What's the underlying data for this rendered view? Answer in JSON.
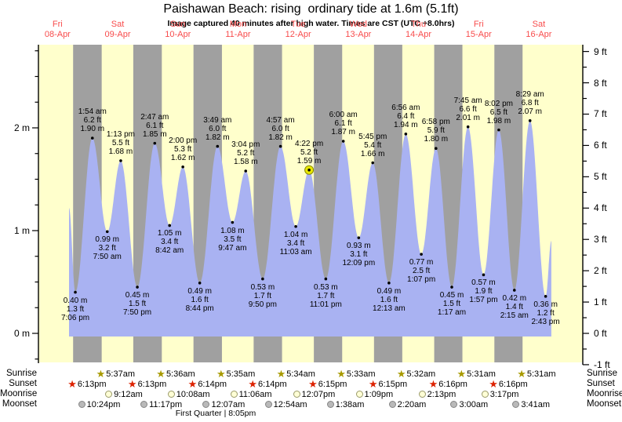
{
  "title": "Paishawan Beach: rising  ordinary tide at 1.6m (5.1ft)",
  "subtitle": "Image captured 40 minutes after high water. Times are CST (UTC +8.0hrs)",
  "row_labels": {
    "sunrise": "Sunrise",
    "sunset": "Sunset",
    "moonrise": "Moonrise",
    "moonset": "Moonset"
  },
  "moon_phase": "First Quarter | 8:05pm",
  "colors": {
    "day_band": "#ffffcc",
    "night_band": "#a0a0a0",
    "tide_fill": "#a9b2f2",
    "date_red": "#f84c4c",
    "sunrise_star": "#a89a00",
    "sunset_star": "#dd2200",
    "moonrise_circle": "#ffffd6",
    "moonset_circle": "#b9b9b9",
    "current_marker": "#ececec00",
    "current_marker_fill": "#e8e800"
  },
  "chart_data": {
    "type": "area",
    "x_axis": "time (9 days, Fri 08-Apr to Sat 16-Apr)",
    "y_axis_left_unit": "m",
    "y_axis_right_unit": "ft",
    "y_ticks_m": [
      0,
      1,
      2
    ],
    "y_ticks_ft": [
      -1,
      0,
      1,
      2,
      3,
      4,
      5,
      6,
      7,
      8,
      9
    ],
    "days": [
      {
        "name": "Fri",
        "date": "08-Apr"
      },
      {
        "name": "Sat",
        "date": "09-Apr"
      },
      {
        "name": "Sun",
        "date": "10-Apr"
      },
      {
        "name": "Mon",
        "date": "11-Apr"
      },
      {
        "name": "Tue",
        "date": "12-Apr"
      },
      {
        "name": "Wed",
        "date": "13-Apr"
      },
      {
        "name": "Thu",
        "date": "14-Apr"
      },
      {
        "name": "Fri",
        "date": "15-Apr"
      },
      {
        "name": "Sat",
        "date": "16-Apr"
      }
    ],
    "tides": [
      {
        "type": "low",
        "day": 0,
        "time": "7:06 pm",
        "m": "0.40",
        "ft": "1.3"
      },
      {
        "type": "high",
        "day": 1,
        "time": "1:54 am",
        "m": "1.90",
        "ft": "6.2"
      },
      {
        "type": "low",
        "day": 1,
        "time": "7:50 am",
        "m": "0.99",
        "ft": "3.2"
      },
      {
        "type": "high",
        "day": 1,
        "time": "1:13 pm",
        "m": "1.68",
        "ft": "5.5"
      },
      {
        "type": "low",
        "day": 1,
        "time": "7:50 pm",
        "m": "0.45",
        "ft": "1.5"
      },
      {
        "type": "high",
        "day": 2,
        "time": "2:47 am",
        "m": "1.85",
        "ft": "6.1"
      },
      {
        "type": "low",
        "day": 2,
        "time": "8:42 am",
        "m": "1.05",
        "ft": "3.4"
      },
      {
        "type": "high",
        "day": 2,
        "time": "2:00 pm",
        "m": "1.62",
        "ft": "5.3"
      },
      {
        "type": "low",
        "day": 2,
        "time": "8:44 pm",
        "m": "0.49",
        "ft": "1.6"
      },
      {
        "type": "high",
        "day": 3,
        "time": "3:49 am",
        "m": "1.82",
        "ft": "6.0"
      },
      {
        "type": "low",
        "day": 3,
        "time": "9:47 am",
        "m": "1.08",
        "ft": "3.5"
      },
      {
        "type": "high",
        "day": 3,
        "time": "3:04 pm",
        "m": "1.58",
        "ft": "5.2"
      },
      {
        "type": "low",
        "day": 3,
        "time": "9:50 pm",
        "m": "0.53",
        "ft": "1.7"
      },
      {
        "type": "high",
        "day": 4,
        "time": "4:57 am",
        "m": "1.82",
        "ft": "6.0"
      },
      {
        "type": "low",
        "day": 4,
        "time": "11:03 am",
        "m": "1.04",
        "ft": "3.4"
      },
      {
        "type": "high",
        "day": 4,
        "time": "4:22 pm",
        "m": "1.59",
        "ft": "5.2",
        "current": true
      },
      {
        "type": "low",
        "day": 4,
        "time": "11:01 pm",
        "m": "0.53",
        "ft": "1.7"
      },
      {
        "type": "high",
        "day": 5,
        "time": "6:00 am",
        "m": "1.87",
        "ft": "6.1"
      },
      {
        "type": "low",
        "day": 5,
        "time": "12:09 pm",
        "m": "0.93",
        "ft": "3.1"
      },
      {
        "type": "high",
        "day": 5,
        "time": "5:45 pm",
        "m": "1.66",
        "ft": "5.4"
      },
      {
        "type": "low",
        "day": 6,
        "time": "12:13 am",
        "m": "0.49",
        "ft": "1.6"
      },
      {
        "type": "high",
        "day": 6,
        "time": "6:56 am",
        "m": "1.94",
        "ft": "6.4"
      },
      {
        "type": "low",
        "day": 6,
        "time": "1:07 pm",
        "m": "0.77",
        "ft": "2.5"
      },
      {
        "type": "high",
        "day": 6,
        "time": "6:58 pm",
        "m": "1.80",
        "ft": "5.9"
      },
      {
        "type": "low",
        "day": 7,
        "time": "1:17 am",
        "m": "0.45",
        "ft": "1.5"
      },
      {
        "type": "high",
        "day": 7,
        "time": "7:45 am",
        "m": "2.01",
        "ft": "6.6"
      },
      {
        "type": "low",
        "day": 7,
        "time": "1:57 pm",
        "m": "0.57",
        "ft": "1.9"
      },
      {
        "type": "high",
        "day": 7,
        "time": "8:02 pm",
        "m": "1.98",
        "ft": "6.5"
      },
      {
        "type": "low",
        "day": 8,
        "time": "2:15 am",
        "m": "0.42",
        "ft": "1.4"
      },
      {
        "type": "high",
        "day": 8,
        "time": "8:29 am",
        "m": "2.07",
        "ft": "6.8"
      },
      {
        "type": "low",
        "day": 8,
        "time": "2:43 pm",
        "m": "0.36",
        "ft": "1.2"
      }
    ],
    "curve_endpoints": {
      "start": {
        "day": 0,
        "time": "4:35 pm",
        "m": "1.22"
      },
      "end": {
        "day": 8,
        "time": "5:00 pm",
        "m": "0.90"
      }
    },
    "sunrise": [
      {
        "day": 1,
        "time": "5:37am"
      },
      {
        "day": 2,
        "time": "5:36am"
      },
      {
        "day": 3,
        "time": "5:35am"
      },
      {
        "day": 4,
        "time": "5:34am"
      },
      {
        "day": 5,
        "time": "5:33am"
      },
      {
        "day": 6,
        "time": "5:32am"
      },
      {
        "day": 7,
        "time": "5:31am"
      },
      {
        "day": 8,
        "time": "5:31am"
      }
    ],
    "sunset": [
      {
        "day": 0,
        "time": "6:13pm"
      },
      {
        "day": 1,
        "time": "6:13pm"
      },
      {
        "day": 2,
        "time": "6:14pm"
      },
      {
        "day": 3,
        "time": "6:14pm"
      },
      {
        "day": 4,
        "time": "6:15pm"
      },
      {
        "day": 5,
        "time": "6:15pm"
      },
      {
        "day": 6,
        "time": "6:16pm"
      },
      {
        "day": 7,
        "time": "6:16pm"
      }
    ],
    "moonrise": [
      {
        "day": 1,
        "time": "9:12am"
      },
      {
        "day": 2,
        "time": "10:08am"
      },
      {
        "day": 3,
        "time": "11:06am"
      },
      {
        "day": 4,
        "time": "12:07pm"
      },
      {
        "day": 5,
        "time": "1:09pm"
      },
      {
        "day": 6,
        "time": "2:13pm"
      },
      {
        "day": 7,
        "time": "3:17pm"
      }
    ],
    "moonset": [
      {
        "day": 0,
        "time": "10:24pm"
      },
      {
        "day": 1,
        "time": "11:17pm"
      },
      {
        "day": 3,
        "time": "12:07am"
      },
      {
        "day": 4,
        "time": "12:54am"
      },
      {
        "day": 5,
        "time": "1:38am"
      },
      {
        "day": 6,
        "time": "2:20am"
      },
      {
        "day": 7,
        "time": "3:00am"
      },
      {
        "day": 8,
        "time": "3:41am"
      }
    ]
  }
}
